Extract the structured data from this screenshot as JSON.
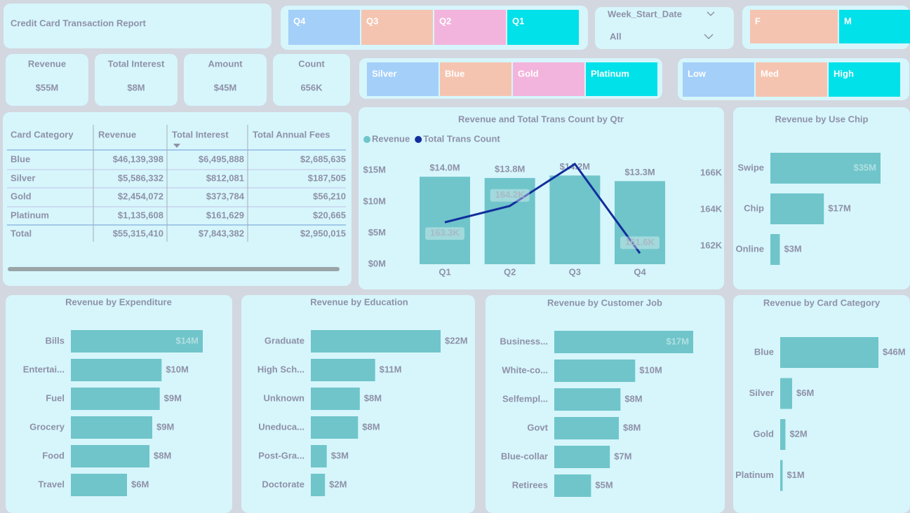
{
  "header": {
    "title": "Credit Card Transaction Report"
  },
  "slicers": {
    "quarter": [
      "Q4",
      "Q3",
      "Q2",
      "Q1"
    ],
    "week": {
      "label": "Week_Start_Date",
      "value": "All"
    },
    "gender": [
      "F",
      "M"
    ],
    "card": [
      "Silver",
      "Blue",
      "Gold",
      "Platinum"
    ],
    "level": [
      "Low",
      "Med",
      "High"
    ]
  },
  "kpis": [
    {
      "label": "Revenue",
      "value": "$55M"
    },
    {
      "label": "Total Interest",
      "value": "$8M"
    },
    {
      "label": "Amount",
      "value": "$45M"
    },
    {
      "label": "Count",
      "value": "656K"
    }
  ],
  "table": {
    "columns": [
      "Card Category",
      "Revenue",
      "Total Interest",
      "Total Annual Fees"
    ],
    "rows": [
      [
        "Blue",
        "$46,139,398",
        "$6,495,888",
        "$2,685,635"
      ],
      [
        "Silver",
        "$5,586,332",
        "$812,081",
        "$187,505"
      ],
      [
        "Gold",
        "$2,454,072",
        "$373,784",
        "$56,210"
      ],
      [
        "Platinum",
        "$1,135,608",
        "$161,629",
        "$20,665"
      ],
      [
        "Total",
        "$55,315,410",
        "$7,843,382",
        "$2,950,015"
      ]
    ]
  },
  "chart_data": [
    {
      "type": "combo",
      "title": "Revenue and Total Trans Count by Qtr",
      "categories": [
        "Q1",
        "Q2",
        "Q3",
        "Q4"
      ],
      "series": [
        {
          "name": "Revenue",
          "type": "bar",
          "color": "#6fc5ca",
          "values": [
            14.0,
            13.8,
            14.2,
            13.3
          ],
          "value_labels": [
            "$14.0M",
            "$13.8M",
            "$14.2M",
            "$13.3M"
          ]
        },
        {
          "name": "Total Trans Count",
          "type": "line",
          "axis": "y2",
          "color": "#122e9c",
          "values": [
            163.3,
            164.2,
            166.5,
            161.6
          ],
          "value_labels": [
            "163.3K",
            "164.2K",
            null,
            "161.6K"
          ]
        }
      ],
      "ylim": [
        0,
        17.5
      ],
      "yticks": [
        {
          "value": 0,
          "label": "$0M"
        },
        {
          "value": 5,
          "label": "$5M"
        },
        {
          "value": 10,
          "label": "$10M"
        },
        {
          "value": 15,
          "label": "$15M"
        }
      ],
      "y2lim": [
        161,
        167
      ],
      "y2ticks": [
        {
          "value": 162,
          "label": "162K"
        },
        {
          "value": 164,
          "label": "164K"
        },
        {
          "value": 166,
          "label": "166K"
        }
      ]
    },
    {
      "type": "hbar",
      "title": "Revenue by Use Chip",
      "color": "#6fc5ca",
      "categories": [
        "Swipe",
        "Chip",
        "Online"
      ],
      "values": [
        35,
        17,
        3
      ],
      "value_labels": [
        "$35M",
        "$17M",
        "$3M"
      ]
    },
    {
      "type": "hbar",
      "title": "Revenue by Expenditure",
      "color": "#6fc5ca",
      "categories": [
        "Bills",
        "Entertai...",
        "Fuel",
        "Grocery",
        "Food",
        "Travel"
      ],
      "values": [
        14.1,
        9.7,
        9.5,
        8.7,
        8.4,
        6.0
      ],
      "value_labels": [
        "$14M",
        "$10M",
        "$9M",
        "$9M",
        "$8M",
        "$6M"
      ]
    },
    {
      "type": "hbar",
      "title": "Revenue by Education",
      "color": "#6fc5ca",
      "categories": [
        "Graduate",
        "High Sch...",
        "Unknown",
        "Uneduca...",
        "Post-Gra...",
        "Doctorate"
      ],
      "values": [
        22,
        10.9,
        8.3,
        8.0,
        2.7,
        2.4
      ],
      "value_labels": [
        "$22M",
        "$11M",
        "$8M",
        "$8M",
        "$3M",
        "$2M"
      ]
    },
    {
      "type": "hbar",
      "title": "Revenue by Customer Job",
      "color": "#6fc5ca",
      "categories": [
        "Business...",
        "White-co...",
        "Selfempl...",
        "Govt",
        "Blue-collar",
        "Retirees"
      ],
      "values": [
        17,
        9.9,
        8.1,
        7.9,
        6.8,
        4.5
      ],
      "value_labels": [
        "$17M",
        "$10M",
        "$8M",
        "$8M",
        "$7M",
        "$5M"
      ]
    },
    {
      "type": "hbar",
      "title": "Revenue by Card Category",
      "color": "#6fc5ca",
      "categories": [
        "Blue",
        "Silver",
        "Gold",
        "Platinum"
      ],
      "values": [
        46.1,
        5.6,
        2.45,
        1.14
      ],
      "value_labels": [
        "$46M",
        "$6M",
        "$2M",
        "$1M"
      ]
    }
  ]
}
